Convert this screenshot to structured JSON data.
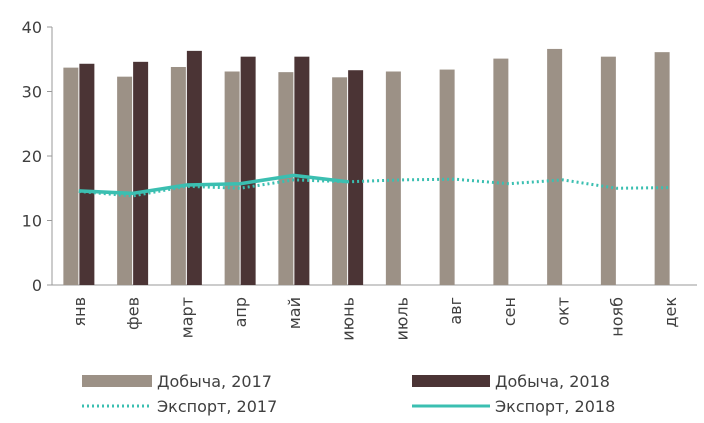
{
  "chart_data": {
    "type": "bar",
    "categories": [
      "янв",
      "фев",
      "март",
      "апр",
      "май",
      "июнь",
      "июль",
      "авг",
      "сен",
      "окт",
      "нояб",
      "дек"
    ],
    "series": [
      {
        "name": "Добыча, 2017",
        "type": "bar",
        "color": "#9c9186",
        "values": [
          33.7,
          32.3,
          33.8,
          33.1,
          33.0,
          32.2,
          33.1,
          33.4,
          35.1,
          36.6,
          35.4,
          36.1
        ]
      },
      {
        "name": "Добыча, 2018",
        "type": "bar",
        "color": "#4b3435",
        "values": [
          34.3,
          34.6,
          36.3,
          35.4,
          35.4,
          33.3,
          null,
          null,
          null,
          null,
          null,
          null
        ]
      },
      {
        "name": "Экспорт, 2017",
        "type": "line",
        "dash": true,
        "color": "#3bbfb1",
        "values": [
          14.5,
          13.8,
          15.3,
          15.0,
          16.3,
          16.0,
          16.3,
          16.4,
          15.7,
          16.3,
          15.0,
          15.1
        ]
      },
      {
        "name": "Экспорт, 2018",
        "type": "line",
        "dash": false,
        "color": "#3bbfb1",
        "values": [
          14.6,
          14.2,
          15.5,
          15.7,
          17.0,
          16.0,
          null,
          null,
          null,
          null,
          null,
          null
        ]
      }
    ],
    "ylim": [
      0,
      40
    ],
    "yticks": [
      0,
      10,
      20,
      30,
      40
    ],
    "grid": false,
    "legend": "bottom"
  }
}
